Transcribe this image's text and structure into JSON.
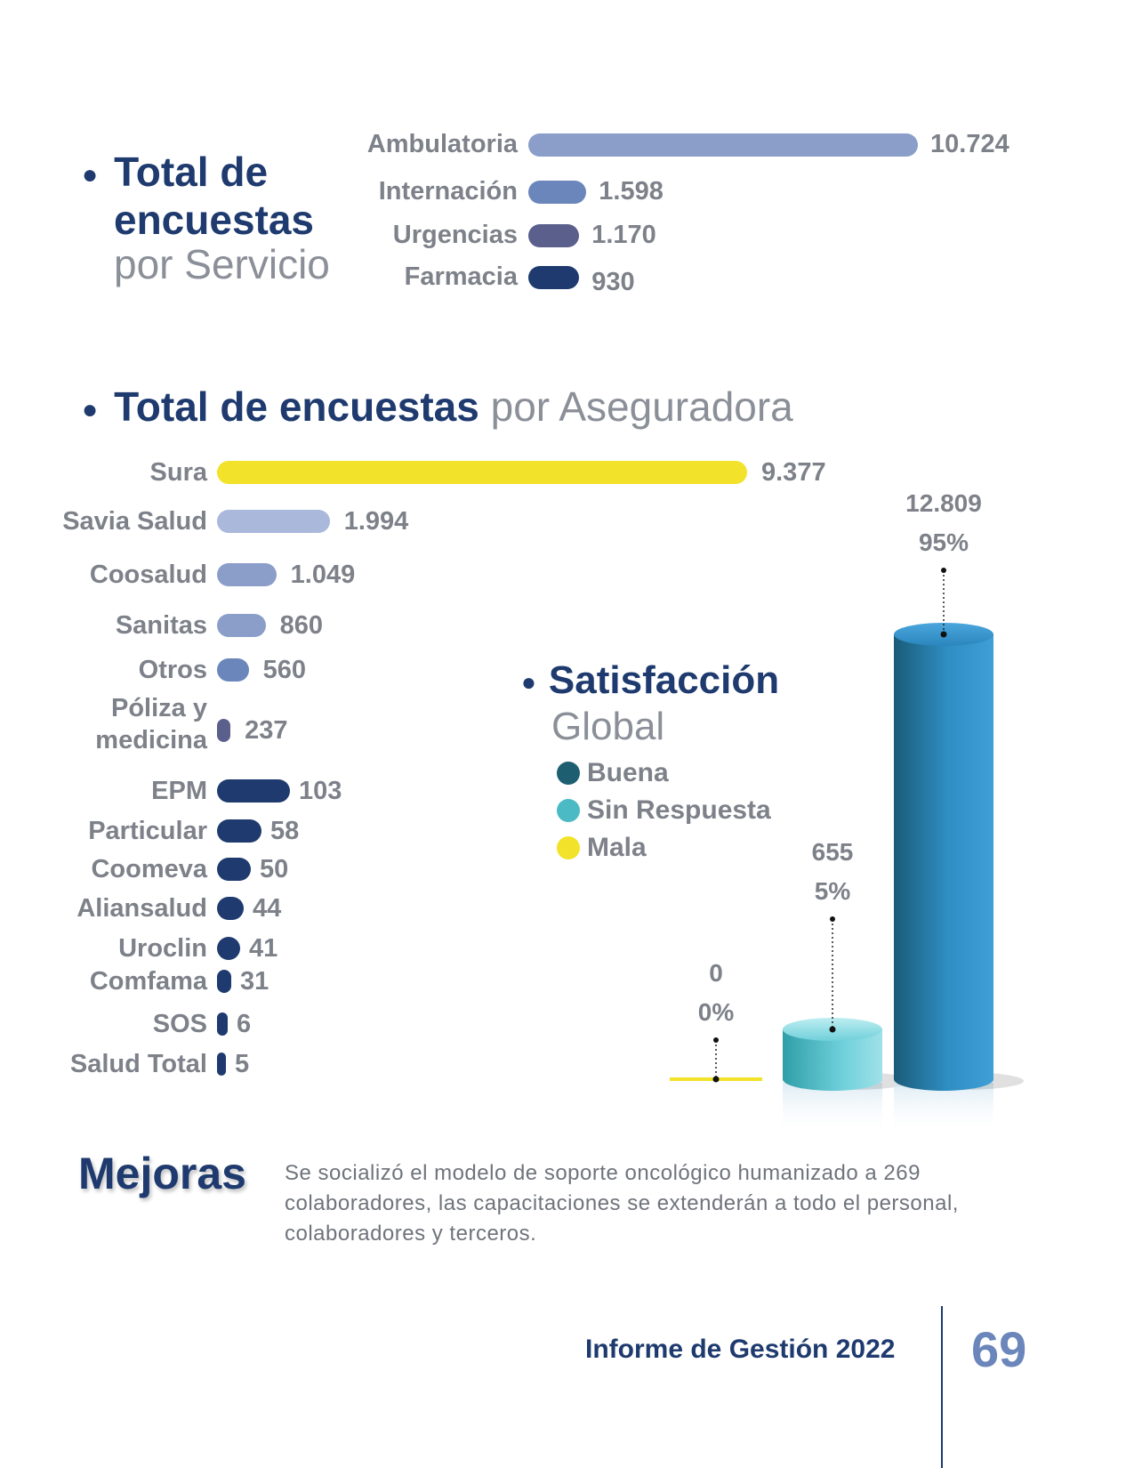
{
  "colors": {
    "navy": "#1e3a6e",
    "grey": "#8a8f98",
    "yellow": "#f3e22a",
    "light_blue": "#a9b8db",
    "mid_blue": "#8a9ec9",
    "steel_blue": "#6a86bb",
    "purple_blue": "#5a5f8c",
    "dark_navy": "#1e3a6e",
    "buena": "#1d5f70",
    "sin_respuesta": "#4bbac5",
    "mala": "#f3e22a"
  },
  "chart_data": [
    {
      "type": "bar",
      "orientation": "horizontal",
      "title_bold": "Total de encuestas",
      "title_light": "por Servicio",
      "categories": [
        "Ambulatoria",
        "Internación",
        "Urgencias",
        "Farmacia"
      ],
      "values": [
        10724,
        1598,
        1170,
        930
      ],
      "value_labels": [
        "10.724",
        "1.598",
        "1.170",
        "930"
      ]
    },
    {
      "type": "bar",
      "orientation": "horizontal",
      "title_bold": "Total de encuestas",
      "title_light": "por Aseguradora",
      "categories": [
        "Sura",
        "Savia Salud",
        "Coosalud",
        "Sanitas",
        "Otros",
        "Póliza y medicina",
        "EPM",
        "Particular",
        "Coomeva",
        "Aliansalud",
        "Uroclin",
        "Comfama",
        "SOS",
        "Salud Total"
      ],
      "values": [
        9377,
        1994,
        1049,
        860,
        560,
        237,
        103,
        58,
        50,
        44,
        41,
        31,
        6,
        5
      ],
      "value_labels": [
        "9.377",
        "1.994",
        "1.049",
        "860",
        "560",
        "237",
        "103",
        "58",
        "50",
        "44",
        "41",
        "31",
        "6",
        "5"
      ]
    },
    {
      "type": "bar",
      "style": "3d-cylinder",
      "title_bold": "Satisfacción",
      "title_light": "Global",
      "legend": [
        "Buena",
        "Sin Respuesta",
        "Mala"
      ],
      "categories": [
        "Mala",
        "Sin Respuesta",
        "Buena"
      ],
      "values": [
        0,
        655,
        12809
      ],
      "value_labels": [
        "0",
        "655",
        "12.809"
      ],
      "percent_labels": [
        "0%",
        "5%",
        "95%"
      ]
    }
  ],
  "mejoras": {
    "title": "Mejoras",
    "text": "Se socializó el modelo de soporte oncológico humanizado a 269 colaboradores, las capacitaciones se extenderán a todo el personal,  colaboradores y terceros."
  },
  "footer": {
    "report": "Informe de Gestión 2022",
    "page": "69"
  }
}
